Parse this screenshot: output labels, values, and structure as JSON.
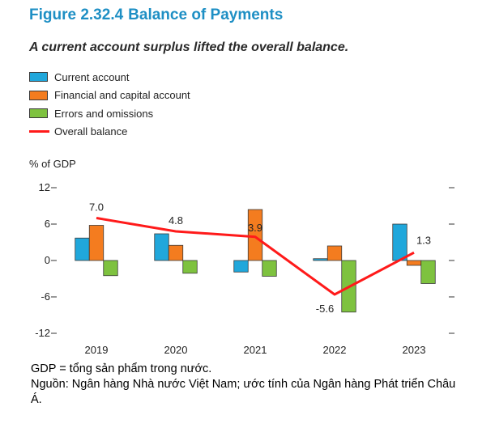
{
  "figure": {
    "label": "Figure 2.32.4",
    "title": "Balance of Payments",
    "subtitle": "A current account surplus lifted the overall balance."
  },
  "colors": {
    "title": "#1e8fc4",
    "current_account": "#20a7db",
    "financial_capital": "#f47c1f",
    "errors_omissions": "#7ec23f",
    "overall_balance": "#ff1a1a"
  },
  "chart_data": {
    "type": "bar",
    "title": "Balance of Payments",
    "ylabel": "% of GDP",
    "xlabel": "",
    "categories": [
      "2019",
      "2020",
      "2021",
      "2022",
      "2023"
    ],
    "ylim": [
      -12,
      12
    ],
    "yticks": [
      -12,
      -6,
      0,
      6,
      12
    ],
    "ytick_labels": [
      "-12",
      "-6",
      "0",
      "6",
      "12"
    ],
    "series": [
      {
        "name": "Current account",
        "values": [
          3.7,
          4.4,
          -1.9,
          0.3,
          6.0
        ]
      },
      {
        "name": "Financial and capital account",
        "values": [
          5.8,
          2.5,
          8.4,
          2.4,
          -0.8
        ]
      },
      {
        "name": "Errors and omissions",
        "values": [
          -2.5,
          -2.1,
          -2.6,
          -8.5,
          -3.8
        ]
      }
    ],
    "line_series": {
      "name": "Overall balance",
      "values": [
        7.0,
        4.8,
        3.9,
        -5.6,
        1.3
      ],
      "labels": [
        "7.0",
        "4.8",
        "3.9",
        "-5.6",
        "1.3"
      ]
    },
    "legend_position": "top-left"
  },
  "footnotes": [
    "GDP = tổng sản phẩm trong nước.",
    "Nguồn: Ngân hàng Nhà nước Việt Nam; ước tính của Ngân hàng Phát triển Châu Á."
  ]
}
